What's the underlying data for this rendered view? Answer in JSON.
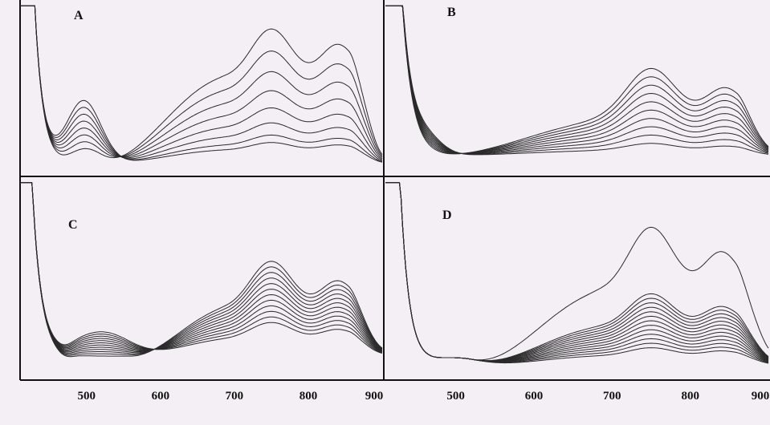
{
  "chart_data": [
    {
      "type": "line",
      "panel": "A",
      "xlabel": "",
      "ylabel": "",
      "xlim": [
        410,
        900
      ],
      "ylim": [
        0,
        1
      ],
      "family": "A",
      "n_series": 8,
      "isosbestic_points": [
        450,
        560
      ]
    },
    {
      "type": "line",
      "panel": "B",
      "xlabel": "",
      "ylabel": "",
      "xlim": [
        410,
        900
      ],
      "ylim": [
        0,
        1
      ],
      "family": "B",
      "n_series": 10,
      "isosbestic_points": [
        470
      ]
    },
    {
      "type": "line",
      "panel": "C",
      "xlabel": "",
      "ylabel": "",
      "xlim": [
        410,
        900
      ],
      "ylim": [
        0,
        1
      ],
      "family": "C",
      "n_series": 12,
      "isosbestic_points": [
        560
      ],
      "xticks": [
        "500",
        "600",
        "700",
        "800",
        "900"
      ]
    },
    {
      "type": "line",
      "panel": "D",
      "xlabel": "",
      "ylabel": "",
      "xlim": [
        410,
        900
      ],
      "ylim": [
        0,
        1
      ],
      "family": "D",
      "n_series": 14,
      "isosbestic_points": [
        530
      ],
      "xticks": [
        "500",
        "600",
        "700",
        "800",
        "900"
      ]
    }
  ]
}
